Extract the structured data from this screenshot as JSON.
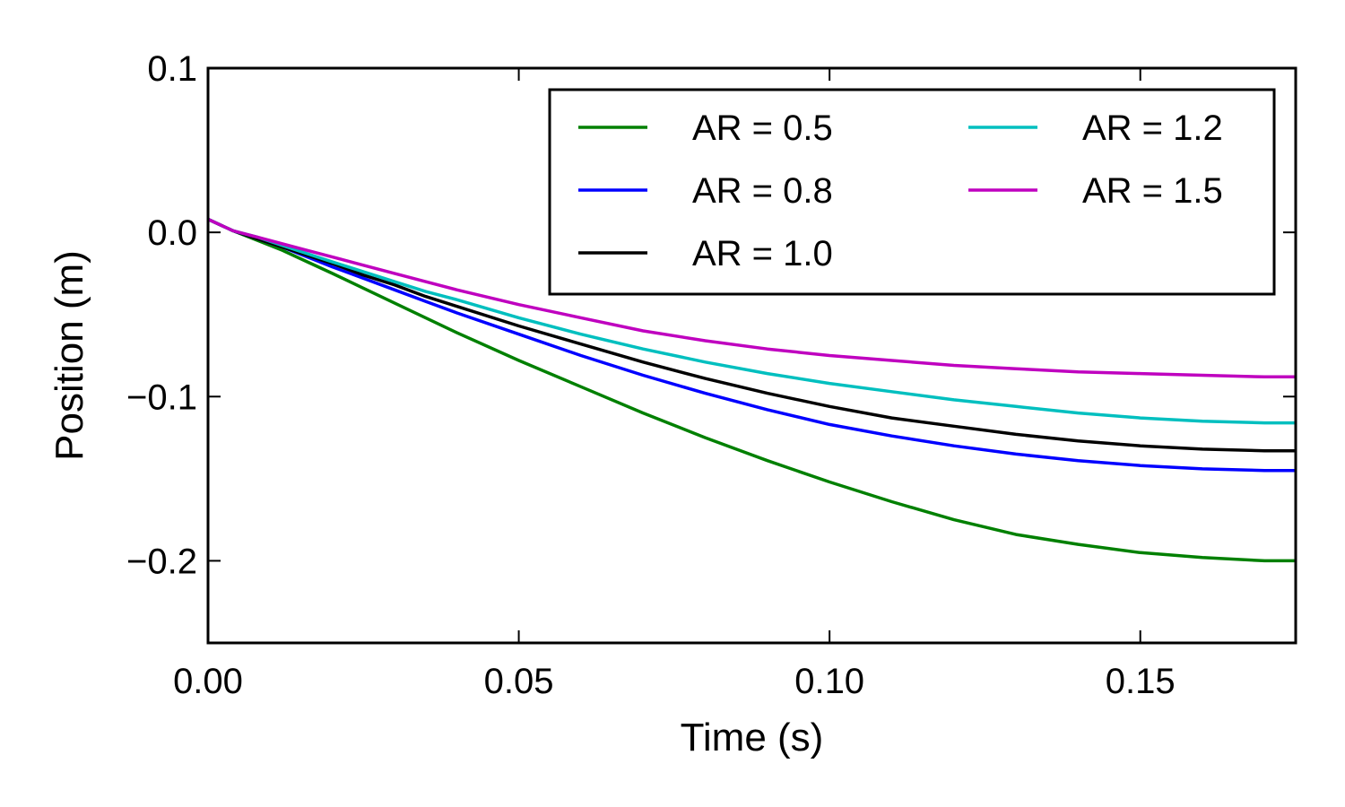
{
  "chart_data": {
    "type": "line",
    "title": "",
    "xlabel": "Time (s)",
    "ylabel": "Position (m)",
    "xlim": [
      0,
      0.175
    ],
    "ylim": [
      -0.25,
      0.1
    ],
    "grid": false,
    "legend_position": "top-right",
    "legend_columns": 2,
    "x_ticks": [
      {
        "value": 0.0,
        "label": "0.00"
      },
      {
        "value": 0.05,
        "label": "0.05"
      },
      {
        "value": 0.1,
        "label": "0.10"
      },
      {
        "value": 0.15,
        "label": "0.15"
      }
    ],
    "y_ticks": [
      {
        "value": 0.1,
        "label": "0.1"
      },
      {
        "value": 0.0,
        "label": "0.0"
      },
      {
        "value": -0.1,
        "label": "−0.1"
      },
      {
        "value": -0.2,
        "label": "−0.2"
      }
    ],
    "x": [
      0.0,
      0.004,
      0.008,
      0.012,
      0.016,
      0.02,
      0.025,
      0.03,
      0.035,
      0.04,
      0.05,
      0.06,
      0.07,
      0.08,
      0.09,
      0.1,
      0.11,
      0.12,
      0.13,
      0.14,
      0.15,
      0.16,
      0.17,
      0.175
    ],
    "series": [
      {
        "name": "AR = 0.5",
        "color": "#008000",
        "values": [
          0.008,
          0.001,
          -0.005,
          -0.011,
          -0.018,
          -0.025,
          -0.034,
          -0.043,
          -0.052,
          -0.061,
          -0.078,
          -0.094,
          -0.11,
          -0.125,
          -0.139,
          -0.152,
          -0.164,
          -0.175,
          -0.184,
          -0.19,
          -0.195,
          -0.198,
          -0.2,
          -0.2
        ]
      },
      {
        "name": "AR = 0.8",
        "color": "#0000ff",
        "values": [
          0.008,
          0.001,
          -0.004,
          -0.009,
          -0.015,
          -0.021,
          -0.028,
          -0.035,
          -0.042,
          -0.049,
          -0.062,
          -0.075,
          -0.087,
          -0.098,
          -0.108,
          -0.117,
          -0.124,
          -0.13,
          -0.135,
          -0.139,
          -0.142,
          -0.144,
          -0.145,
          -0.145
        ]
      },
      {
        "name": "AR = 1.0",
        "color": "#000000",
        "values": [
          0.008,
          0.001,
          -0.004,
          -0.009,
          -0.014,
          -0.019,
          -0.026,
          -0.032,
          -0.039,
          -0.045,
          -0.057,
          -0.068,
          -0.079,
          -0.089,
          -0.098,
          -0.106,
          -0.113,
          -0.118,
          -0.123,
          -0.127,
          -0.13,
          -0.132,
          -0.133,
          -0.133
        ]
      },
      {
        "name": "AR = 1.2",
        "color": "#00bfbf",
        "values": [
          0.008,
          0.001,
          -0.003,
          -0.008,
          -0.013,
          -0.018,
          -0.024,
          -0.03,
          -0.036,
          -0.041,
          -0.052,
          -0.062,
          -0.071,
          -0.079,
          -0.086,
          -0.092,
          -0.097,
          -0.102,
          -0.106,
          -0.11,
          -0.113,
          -0.115,
          -0.116,
          -0.116
        ]
      },
      {
        "name": "AR = 1.5",
        "color": "#bf00bf",
        "values": [
          0.008,
          0.001,
          -0.003,
          -0.007,
          -0.011,
          -0.015,
          -0.02,
          -0.025,
          -0.03,
          -0.035,
          -0.044,
          -0.052,
          -0.06,
          -0.066,
          -0.071,
          -0.075,
          -0.078,
          -0.081,
          -0.083,
          -0.085,
          -0.086,
          -0.087,
          -0.088,
          -0.088
        ]
      }
    ]
  }
}
